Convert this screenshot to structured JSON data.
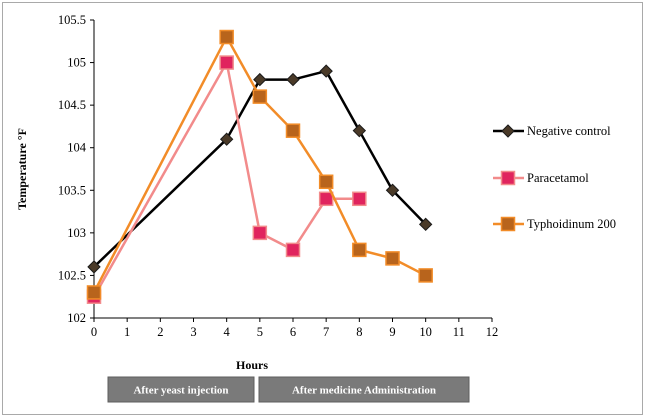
{
  "chart_data": {
    "type": "line",
    "title": "",
    "xlabel": "Hours",
    "ylabel": "Temperature  °F",
    "xlim": [
      0,
      12
    ],
    "ylim": [
      102,
      105.5
    ],
    "x_ticks": [
      "0",
      "1",
      "2",
      "3",
      "4",
      "5",
      "6",
      "7",
      "8",
      "9",
      "10",
      "11",
      "12"
    ],
    "y_ticks": [
      "102",
      "102.5",
      "103",
      "103.5",
      "104",
      "104.5",
      "105",
      "105.5"
    ],
    "grid": false,
    "legend_position": "right",
    "series": [
      {
        "name": "Negative control",
        "color": "#000000",
        "marker": "diamond",
        "x": [
          0,
          4,
          5,
          6,
          7,
          8,
          9,
          10
        ],
        "y": [
          102.6,
          104.1,
          104.8,
          104.8,
          104.9,
          104.2,
          103.5,
          103.1
        ]
      },
      {
        "name": "Paracetamol",
        "color": "#f28b8b",
        "marker_color": "#e0245e",
        "marker": "square",
        "x": [
          0,
          4,
          5,
          6,
          7,
          8
        ],
        "y": [
          102.25,
          105.0,
          103.0,
          102.8,
          103.4,
          103.4
        ]
      },
      {
        "name": "Typhoidinum 200",
        "color": "#f28c28",
        "marker_color": "#b8641c",
        "marker": "square",
        "x": [
          0,
          4,
          5,
          6,
          7,
          8,
          9,
          10
        ],
        "y": [
          102.3,
          105.3,
          104.6,
          104.2,
          103.6,
          102.8,
          102.7,
          102.5
        ]
      }
    ],
    "phases": [
      {
        "label": "After yeast injection",
        "from": 0,
        "to": 5
      },
      {
        "label": "After medicine Administration",
        "from": 5,
        "to": 10
      }
    ]
  }
}
